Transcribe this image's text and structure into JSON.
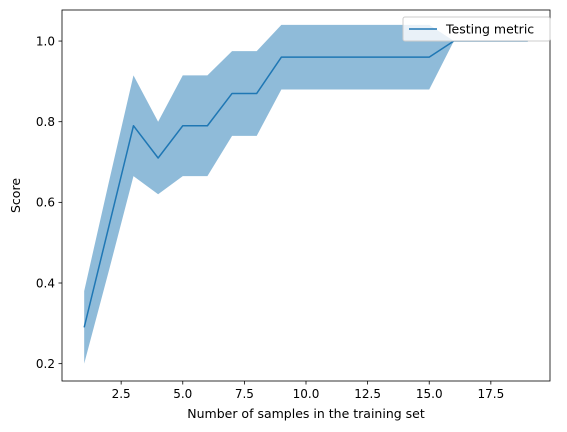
{
  "chart_data": {
    "type": "line",
    "title": "",
    "xlabel": "Number of samples in the training set",
    "ylabel": "Score",
    "xlim": [
      0.1,
      19.9
    ],
    "ylim": [
      0.157,
      1.077
    ],
    "x_ticks": [
      2.5,
      5.0,
      7.5,
      10.0,
      12.5,
      15.0,
      17.5
    ],
    "x_tick_labels": [
      "2.5",
      "5.0",
      "7.5",
      "10.0",
      "12.5",
      "15.0",
      "17.5"
    ],
    "y_ticks": [
      0.2,
      0.4,
      0.6,
      0.8,
      1.0
    ],
    "y_tick_labels": [
      "0.2",
      "0.4",
      "0.6",
      "0.8",
      "1.0"
    ],
    "grid": false,
    "legend_position": "top-right",
    "series": [
      {
        "name": "Testing metric",
        "color": "#1f77b4",
        "band_color": "#1f77b4",
        "band_opacity": 0.5,
        "x": [
          1,
          2,
          3,
          4,
          5,
          6,
          7,
          8,
          9,
          10,
          11,
          12,
          13,
          14,
          15,
          16,
          17,
          18,
          19
        ],
        "y": [
          0.29,
          0.54,
          0.79,
          0.71,
          0.79,
          0.79,
          0.87,
          0.87,
          0.96,
          0.96,
          0.96,
          0.96,
          0.96,
          0.96,
          0.96,
          1.0,
          1.0,
          1.0,
          1.0
        ],
        "lower": [
          0.2,
          0.43,
          0.665,
          0.62,
          0.665,
          0.665,
          0.765,
          0.765,
          0.88,
          0.88,
          0.88,
          0.88,
          0.88,
          0.88,
          0.88,
          1.0,
          1.0,
          1.0,
          1.0
        ],
        "upper": [
          0.38,
          0.65,
          0.915,
          0.8,
          0.915,
          0.915,
          0.975,
          0.975,
          1.04,
          1.04,
          1.04,
          1.04,
          1.04,
          1.04,
          1.04,
          1.0,
          1.0,
          1.0,
          1.0
        ]
      }
    ]
  }
}
